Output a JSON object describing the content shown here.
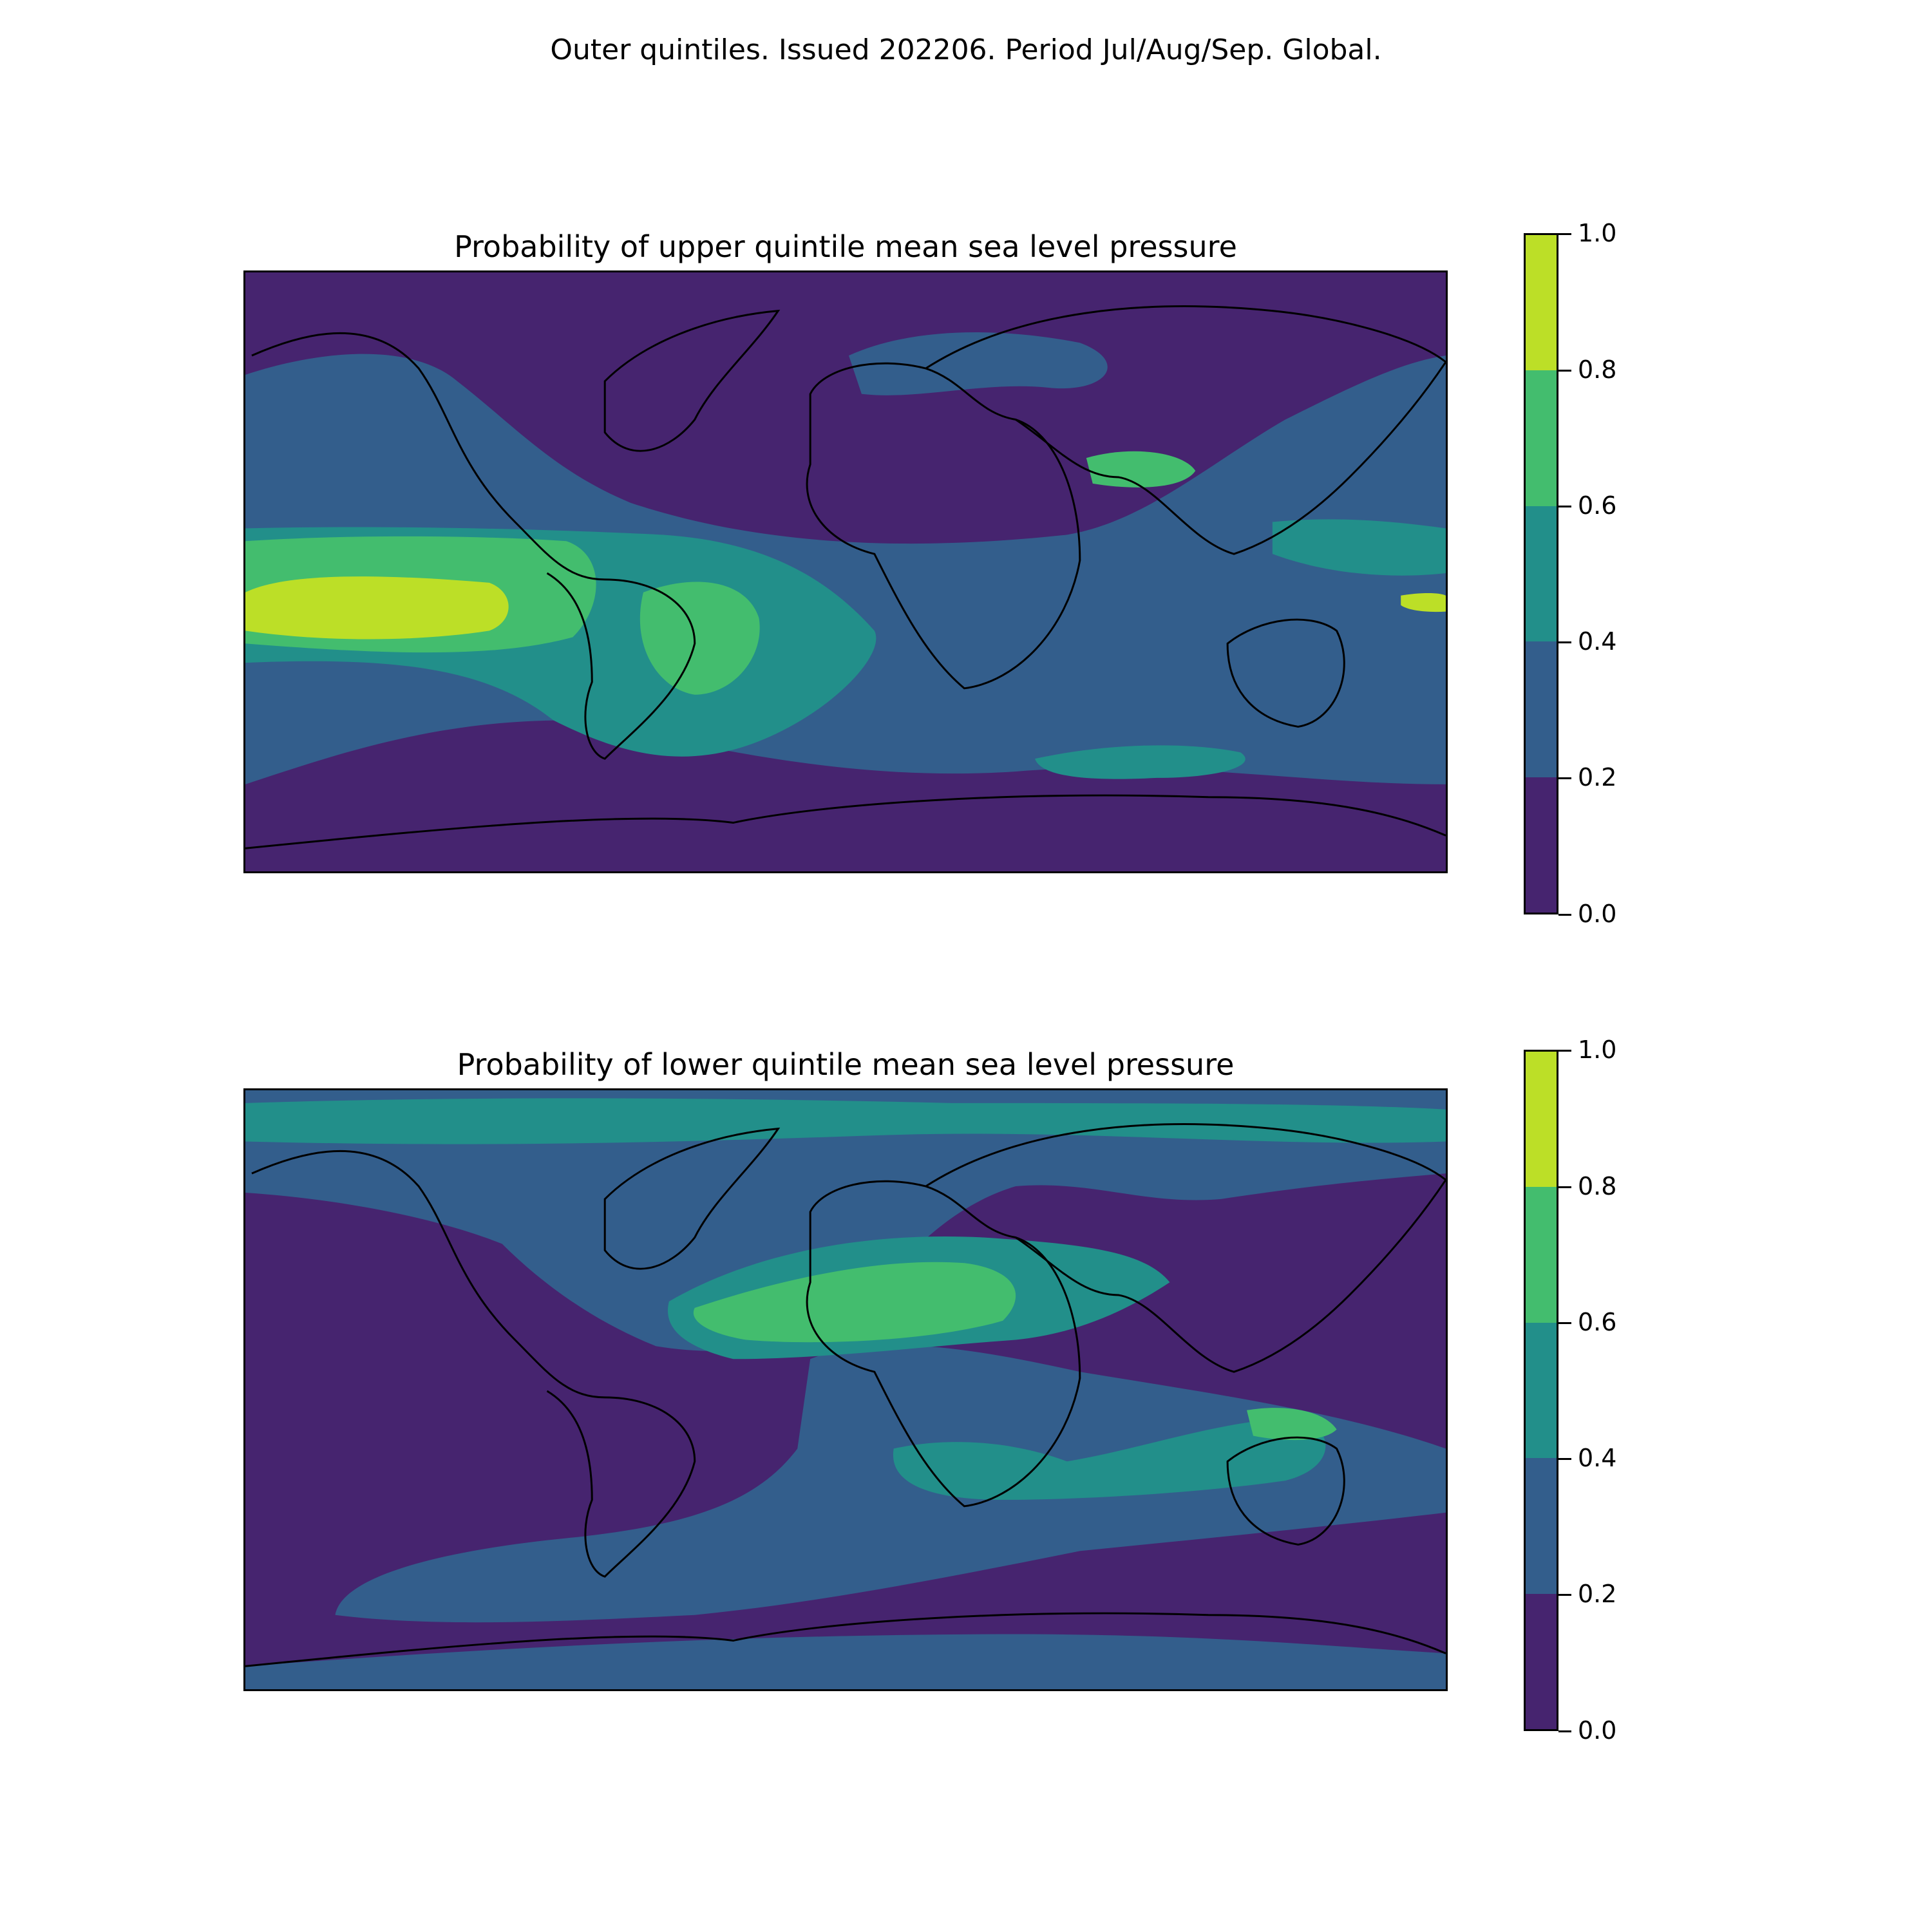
{
  "title": "Outer quintiles. Issued 202206. Period Jul/Aug/Sep. Global.",
  "colorbar": {
    "ticks": [
      "0.0",
      "0.2",
      "0.4",
      "0.6",
      "0.8",
      "1.0"
    ],
    "levels": [
      0.0,
      0.2,
      0.4,
      0.6,
      0.8,
      1.0
    ],
    "colors": [
      "#46246f",
      "#335e8c",
      "#228f8a",
      "#43bd6e",
      "#bcdf27"
    ]
  },
  "panels": [
    {
      "title": "Probability of upper quintile mean sea level pressure",
      "background_class": 0
    },
    {
      "title": "Probability of lower quintile mean sea level pressure",
      "background_class": 0
    }
  ]
}
